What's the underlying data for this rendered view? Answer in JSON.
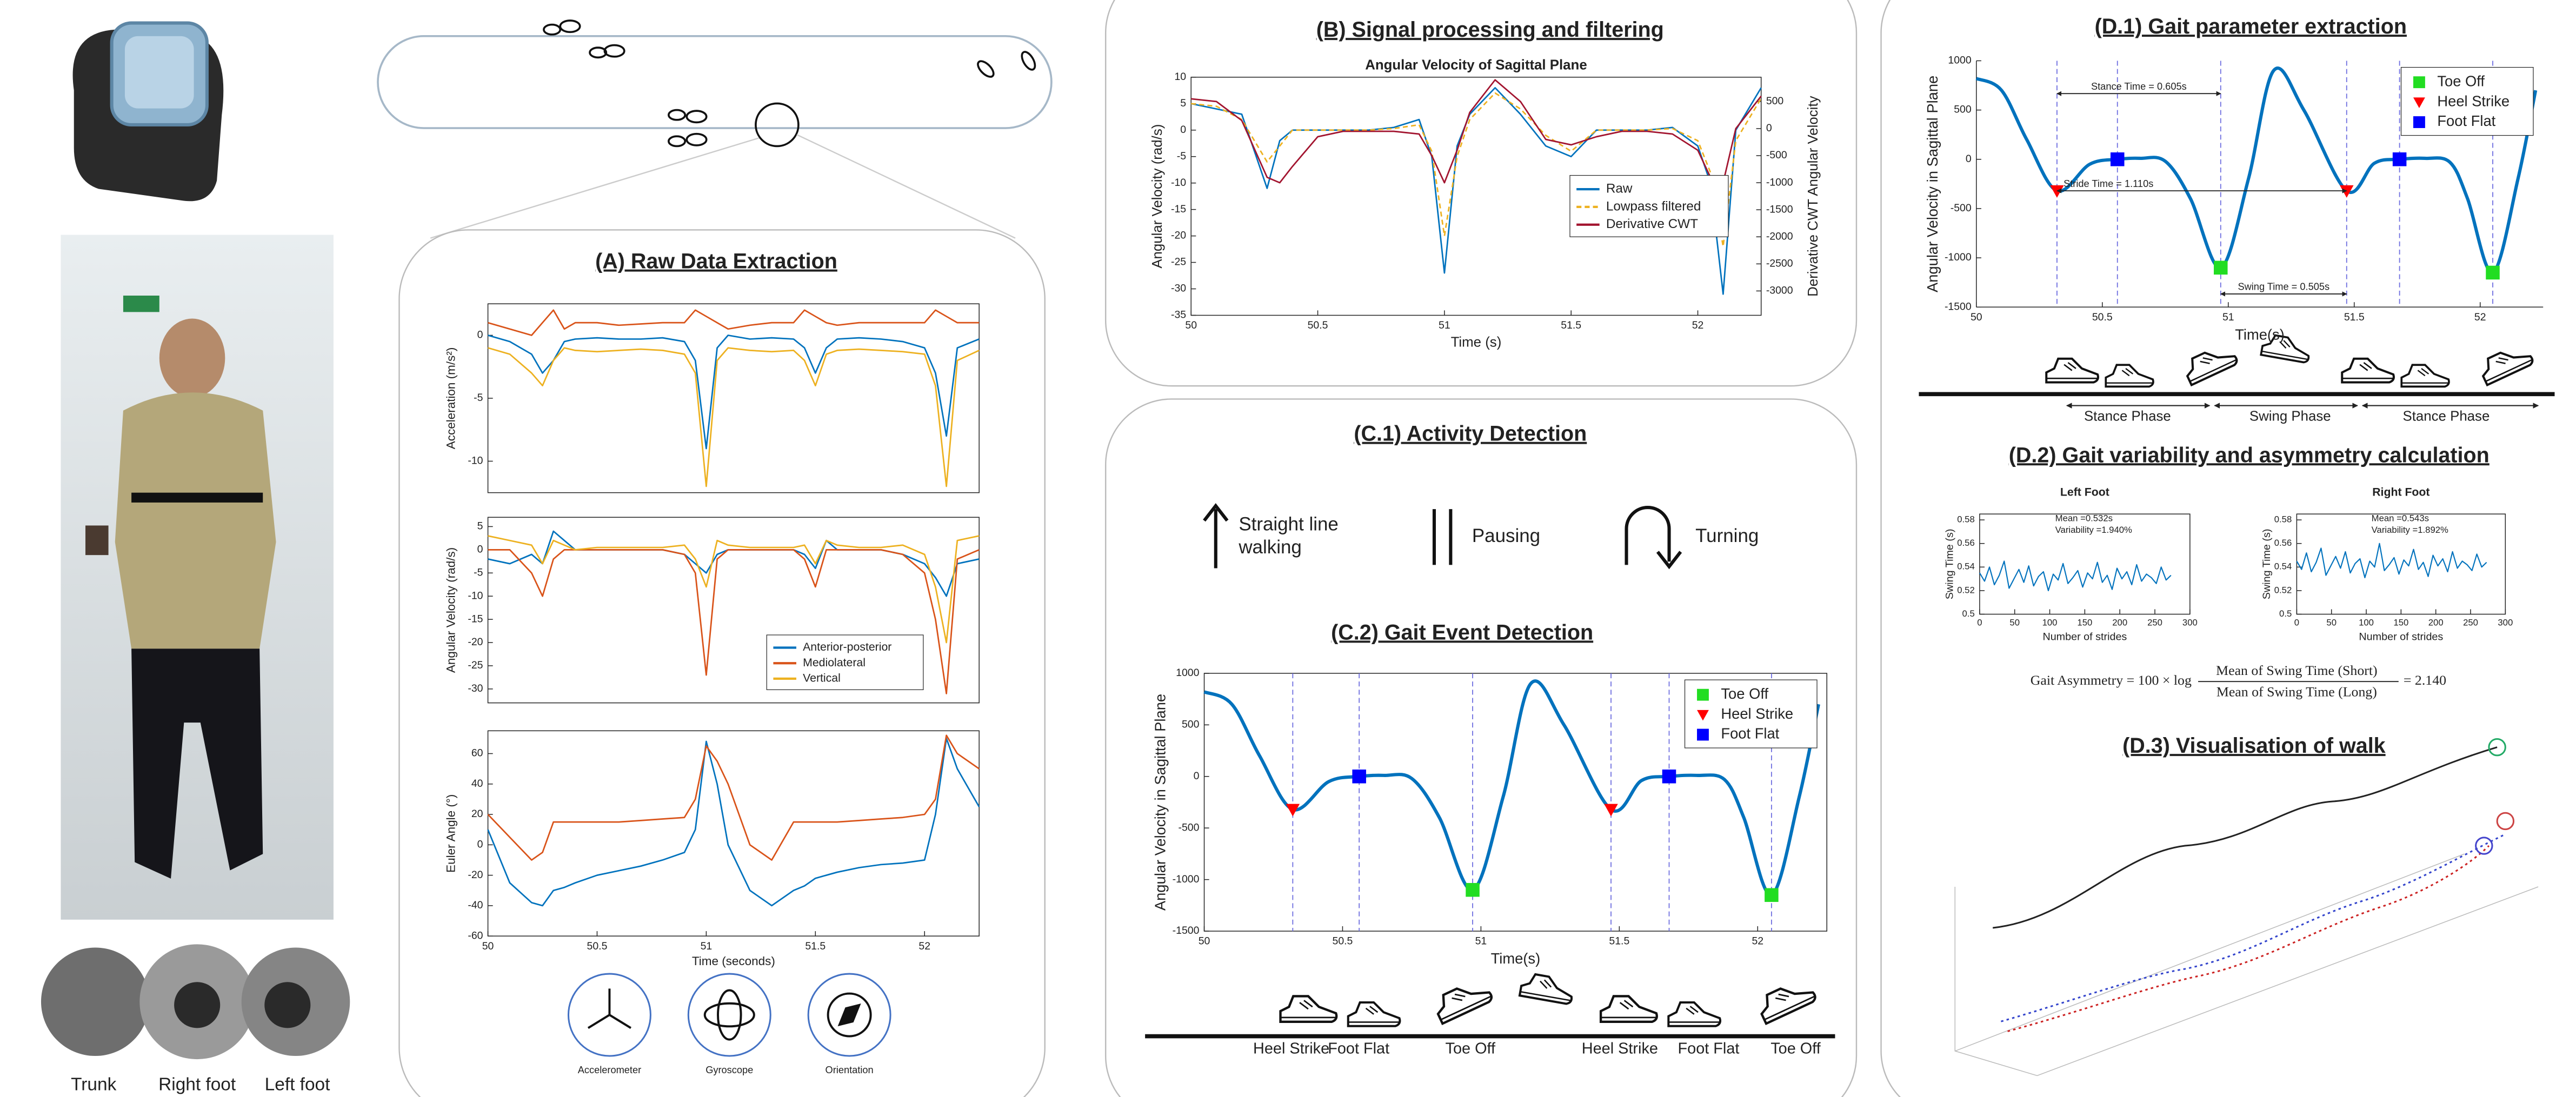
{
  "panels": {
    "A": "(A) Raw Data Extraction",
    "B": "(B) Signal processing and filtering",
    "C1": "(C.1) Activity Detection",
    "C2": "(C.2) Gait Event Detection",
    "D1": "(D.1) Gait parameter extraction",
    "D2": "(D.2) Gait variability and asymmetry calculation",
    "D3": "(D.3) Visualisation of walk"
  },
  "sensor_locations": [
    "Trunk",
    "Right foot",
    "Left foot"
  ],
  "sensor_types": [
    "Accelerometer",
    "Gyroscope",
    "Orientation"
  ],
  "activities": [
    [
      "Straight line",
      "walking"
    ],
    [
      "Pausing"
    ],
    [
      "Turning"
    ]
  ],
  "asymmetry": {
    "lhs": "Gait Asymmetry = 100 × log",
    "numerator": "Mean of Swing Time (Short)",
    "denominator": "Mean of Swing Time (Long)",
    "result": "= 2.140"
  },
  "chart_data": [
    {
      "type": "line",
      "ylabel": "Acceleration (m/s²)",
      "x": [
        50,
        50.1,
        50.2,
        50.25,
        50.3,
        50.35,
        50.4,
        50.5,
        50.6,
        50.7,
        50.8,
        50.9,
        50.95,
        51,
        51.05,
        51.1,
        51.2,
        51.3,
        51.4,
        51.45,
        51.5,
        51.55,
        51.6,
        51.7,
        51.8,
        51.9,
        52,
        52.05,
        52.1,
        52.15,
        52.25
      ],
      "xlim": [
        50,
        52.25
      ],
      "ylim": [
        -12.5,
        2.5
      ],
      "yticks": [
        0,
        -5,
        -10
      ],
      "series": [
        {
          "color": "#0072BD",
          "values": [
            0,
            -0.5,
            -1.5,
            -3,
            -2,
            -0.5,
            -0.3,
            -0.2,
            -0.3,
            -0.3,
            -0.2,
            -0.5,
            -2,
            -9,
            -1,
            0,
            -0.3,
            -0.2,
            -0.3,
            -1,
            -3,
            -1,
            -0.3,
            -0.2,
            -0.3,
            -0.5,
            -1,
            -3,
            -8,
            -1,
            -0.3
          ]
        },
        {
          "color": "#D95319",
          "values": [
            1,
            0.5,
            0,
            1,
            2,
            0.5,
            1,
            1,
            0.8,
            0.9,
            1,
            1,
            2,
            1.5,
            1,
            0.5,
            0.8,
            1,
            1,
            2,
            1.5,
            1,
            0.8,
            1,
            1,
            1,
            1,
            2,
            1.5,
            1,
            1
          ]
        },
        {
          "color": "#EDB120",
          "values": [
            -1,
            -1.5,
            -3,
            -4,
            -2,
            -1,
            -1.2,
            -1.3,
            -1.2,
            -1.1,
            -1.2,
            -1.5,
            -3,
            -12,
            -2,
            -1,
            -1.2,
            -1.3,
            -1.2,
            -2,
            -4,
            -1.5,
            -1.2,
            -1.1,
            -1.2,
            -1.3,
            -1.5,
            -4,
            -12,
            -2,
            -1.2
          ]
        }
      ]
    },
    {
      "type": "line",
      "ylabel": "Angular Velocity (rad/s)",
      "legend": "lower right",
      "x": [
        50,
        50.1,
        50.2,
        50.25,
        50.3,
        50.35,
        50.4,
        50.5,
        50.6,
        50.7,
        50.8,
        50.9,
        50.95,
        51,
        51.05,
        51.1,
        51.2,
        51.3,
        51.4,
        51.45,
        51.5,
        51.55,
        51.6,
        51.7,
        51.8,
        51.9,
        52,
        52.05,
        52.1,
        52.15,
        52.25
      ],
      "xlim": [
        50,
        52.25
      ],
      "ylim": [
        -33,
        7
      ],
      "yticks": [
        5,
        0,
        -5,
        -10,
        -15,
        -20,
        -25,
        -30
      ],
      "series": [
        {
          "name": "Anterior-posterior",
          "color": "#0072BD",
          "values": [
            -2,
            -3,
            -1,
            -3,
            4,
            2,
            0,
            0,
            0,
            0,
            0,
            -1,
            -3,
            -5,
            -1,
            0,
            0,
            0,
            0,
            -1,
            -4,
            2,
            0,
            0,
            0,
            -1,
            -3,
            -6,
            -10,
            -3,
            -2
          ]
        },
        {
          "name": "Mediolateral",
          "color": "#D95319",
          "values": [
            0,
            0,
            -5,
            -10,
            -2,
            0,
            0,
            0,
            0,
            0,
            0,
            -1,
            -5,
            -27,
            -2,
            0,
            0,
            0,
            0,
            -2,
            -8,
            0,
            0,
            0,
            0,
            -1,
            -5,
            -15,
            -31,
            -2,
            0
          ]
        },
        {
          "name": "Vertical",
          "color": "#EDB120",
          "values": [
            3,
            2,
            1,
            -3,
            2,
            1,
            0,
            0.5,
            0.5,
            0.5,
            0.5,
            1,
            -2,
            -8,
            2,
            1,
            0.5,
            0.5,
            0.5,
            1,
            -3,
            2,
            1,
            0.5,
            0.5,
            1,
            -1,
            -8,
            -20,
            2,
            3
          ]
        }
      ]
    },
    {
      "type": "line",
      "ylabel": "Euler Angle (°)",
      "xlabel": "Time (seconds)",
      "x": [
        50,
        50.1,
        50.2,
        50.25,
        50.3,
        50.35,
        50.4,
        50.5,
        50.6,
        50.7,
        50.8,
        50.9,
        50.95,
        51,
        51.05,
        51.1,
        51.2,
        51.3,
        51.4,
        51.45,
        51.5,
        51.55,
        51.6,
        51.7,
        51.8,
        51.9,
        52,
        52.05,
        52.1,
        52.15,
        52.25
      ],
      "xlim": [
        50,
        52.25
      ],
      "xticks": [
        50,
        50.5,
        51,
        51.5,
        52
      ],
      "ylim": [
        -60,
        75
      ],
      "yticks": [
        60,
        40,
        20,
        0,
        -20,
        -40,
        -60
      ],
      "series": [
        {
          "color": "#0072BD",
          "values": [
            10,
            -25,
            -38,
            -40,
            -30,
            -28,
            -25,
            -20,
            -17,
            -14,
            -10,
            -5,
            10,
            68,
            40,
            0,
            -30,
            -40,
            -30,
            -27,
            -22,
            -20,
            -18,
            -15,
            -13,
            -12,
            -10,
            20,
            70,
            50,
            25
          ]
        },
        {
          "color": "#D95319",
          "values": [
            20,
            5,
            -10,
            -5,
            15,
            15,
            15,
            15,
            15,
            16,
            17,
            18,
            30,
            65,
            55,
            40,
            0,
            -10,
            15,
            15,
            15,
            15,
            15,
            16,
            17,
            18,
            20,
            30,
            72,
            60,
            50
          ]
        }
      ]
    },
    {
      "type": "line",
      "title": "Angular Velocity of Sagittal Plane",
      "xlabel": "Time (s)",
      "ylabel": "Angular Velocity (rad/s)",
      "y2label": "Derivative CWT Angular Velocity",
      "y_color": "#0072BD",
      "y2_color": "#D95319",
      "legend": "center right",
      "x": [
        50,
        50.1,
        50.2,
        50.3,
        50.35,
        50.4,
        50.5,
        50.6,
        50.7,
        50.8,
        50.9,
        50.95,
        51,
        51.05,
        51.1,
        51.2,
        51.3,
        51.4,
        51.5,
        51.6,
        51.7,
        51.8,
        51.9,
        52,
        52.05,
        52.1,
        52.15,
        52.25
      ],
      "xlim": [
        50,
        52.25
      ],
      "xticks": [
        50,
        50.5,
        51,
        51.5,
        52
      ],
      "ylim": [
        -35,
        10
      ],
      "yticks": [
        10,
        5,
        0,
        -5,
        -10,
        -15,
        -20,
        -25,
        -30,
        -35
      ],
      "y2lim": [
        -3450,
        950
      ],
      "y2ticks": [
        500,
        0,
        -500,
        -1000,
        -1500,
        -2000,
        -2500,
        -3000
      ],
      "series": [
        {
          "name": "Raw",
          "color": "#0072BD",
          "values": [
            5,
            4,
            3,
            -11,
            -2,
            0,
            0,
            0,
            0,
            0.5,
            2,
            -5,
            -27,
            -3,
            3,
            8,
            3,
            -3,
            -5,
            0,
            0,
            0,
            0.5,
            -3,
            -10,
            -31,
            0,
            8
          ]
        },
        {
          "name": "Lowpass filtered",
          "color": "#EDB120",
          "dash": true,
          "values": [
            5,
            4.5,
            2,
            -6,
            -3,
            0,
            0,
            0,
            0,
            0.3,
            1,
            -4,
            -20,
            -5,
            2,
            7,
            4,
            -1,
            -4,
            0,
            0,
            0,
            0.3,
            -2,
            -8,
            -22,
            -2,
            6
          ]
        },
        {
          "name": "Derivative CWT",
          "color": "#A2142F",
          "axis": "y2",
          "values": [
            550,
            500,
            150,
            -900,
            -1000,
            -700,
            -150,
            -50,
            -50,
            -50,
            -100,
            -500,
            -1000,
            -400,
            300,
            900,
            500,
            -200,
            -300,
            -150,
            -50,
            -50,
            -100,
            -400,
            -900,
            -1000,
            0,
            600
          ]
        }
      ]
    },
    {
      "type": "gait",
      "xlabel": "Time(s)",
      "ylabel": "Angular Velocity in Sagittal Plane",
      "legend": "upper right",
      "x": [
        50,
        50.1,
        50.2,
        50.32,
        50.45,
        50.56,
        50.65,
        50.75,
        50.85,
        50.97,
        51.08,
        51.18,
        51.3,
        51.47,
        51.58,
        51.68,
        51.78,
        51.88,
        51.95,
        52.05,
        52.15,
        52.22
      ],
      "values": [
        820,
        700,
        200,
        -320,
        -50,
        0,
        10,
        -20,
        -400,
        -1100,
        -200,
        900,
        500,
        -320,
        -40,
        0,
        10,
        -30,
        -400,
        -1150,
        -200,
        700
      ],
      "color": "#0072BD",
      "xlim": [
        50,
        52.25
      ],
      "xticks": [
        50,
        50.5,
        51,
        51.5,
        52
      ],
      "ylim": [
        -1500,
        1000
      ],
      "yticks": [
        1000,
        500,
        0,
        -500,
        -1000,
        -1500
      ],
      "events": [
        {
          "name": "Toe Off",
          "color": "#22DD22",
          "shape": "square",
          "x": [
            50.97,
            52.05
          ],
          "values": [
            -1100,
            -1150
          ]
        },
        {
          "name": "Heel Strike",
          "color": "#FF0000",
          "shape": "triangle",
          "x": [
            50.32,
            51.47
          ],
          "values": [
            -320,
            -320
          ]
        },
        {
          "name": "Foot Flat",
          "color": "#0000FF",
          "shape": "square",
          "x": [
            50.56,
            51.68
          ],
          "values": [
            0,
            0
          ]
        }
      ],
      "phase_labels": [
        "Heel Strike",
        "Foot Flat",
        "Toe Off",
        "Heel Strike",
        "Foot Flat",
        "Toe Off"
      ]
    },
    {
      "type": "gait",
      "xlabel": "Time(s)",
      "ylabel": "Angular Velocity in Sagittal Plane",
      "legend": "upper right",
      "x": [
        50,
        50.1,
        50.2,
        50.32,
        50.45,
        50.56,
        50.65,
        50.75,
        50.85,
        50.97,
        51.08,
        51.18,
        51.3,
        51.47,
        51.58,
        51.68,
        51.78,
        51.88,
        51.95,
        52.05,
        52.15,
        52.22
      ],
      "values": [
        820,
        700,
        200,
        -320,
        -50,
        0,
        10,
        -20,
        -400,
        -1100,
        -200,
        900,
        500,
        -320,
        -40,
        0,
        10,
        -30,
        -400,
        -1150,
        -200,
        700
      ],
      "color": "#0072BD",
      "xlim": [
        50,
        52.25
      ],
      "xticks": [
        50,
        50.5,
        51,
        51.5,
        52
      ],
      "ylim": [
        -1500,
        1000
      ],
      "yticks": [
        1000,
        500,
        0,
        -500,
        -1000,
        -1500
      ],
      "events": [
        {
          "name": "Toe Off",
          "color": "#22DD22",
          "shape": "square",
          "x": [
            50.97,
            52.05
          ],
          "values": [
            -1100,
            -1150
          ]
        },
        {
          "name": "Heel Strike",
          "color": "#FF0000",
          "shape": "triangle",
          "x": [
            50.32,
            51.47
          ],
          "values": [
            -320,
            -320
          ]
        },
        {
          "name": "Foot Flat",
          "color": "#0000FF",
          "shape": "square",
          "x": [
            50.56,
            51.68
          ],
          "values": [
            0,
            0
          ]
        }
      ],
      "annotations": [
        "Stance Time = 0.605s",
        "Stride Time = 1.110s",
        "Swing Time = 0.505s"
      ],
      "phase_labels": [
        "Stance Phase",
        "Swing Phase",
        "Stance Phase"
      ]
    },
    {
      "type": "line",
      "title": "Left Foot",
      "xlabel": "Number of strides",
      "ylabel": "Swing Time (s)",
      "annotations": [
        "Mean =0.532s",
        "Variability =1.940%"
      ],
      "x": [
        0,
        7,
        14,
        21,
        28,
        35,
        42,
        49,
        56,
        63,
        70,
        77,
        84,
        91,
        98,
        105,
        112,
        119,
        126,
        133,
        140,
        147,
        154,
        161,
        168,
        175,
        182,
        189,
        196,
        203,
        210,
        217,
        224,
        231,
        238,
        245,
        252,
        259,
        266,
        273
      ],
      "xlim": [
        0,
        300
      ],
      "xticks": [
        0,
        50,
        100,
        150,
        200,
        250,
        300
      ],
      "ylim": [
        0.5,
        0.585
      ],
      "yticks": [
        0.5,
        0.52,
        0.54,
        0.56,
        0.58
      ],
      "series": [
        {
          "color": "#0072BD",
          "values": [
            0.535,
            0.528,
            0.54,
            0.525,
            0.533,
            0.545,
            0.522,
            0.53,
            0.538,
            0.527,
            0.541,
            0.524,
            0.532,
            0.536,
            0.52,
            0.534,
            0.529,
            0.543,
            0.526,
            0.531,
            0.537,
            0.523,
            0.535,
            0.53,
            0.544,
            0.527,
            0.533,
            0.521,
            0.539,
            0.53,
            0.536,
            0.525,
            0.542,
            0.528,
            0.534,
            0.531,
            0.526,
            0.54,
            0.529,
            0.533
          ]
        }
      ]
    },
    {
      "type": "line",
      "title": "Right Foot",
      "xlabel": "Number of strides",
      "ylabel": "Swing Time (s)",
      "annotations": [
        "Mean =0.543s",
        "Variability =1.892%"
      ],
      "x": [
        0,
        7,
        14,
        21,
        28,
        35,
        42,
        49,
        56,
        63,
        70,
        77,
        84,
        91,
        98,
        105,
        112,
        119,
        126,
        133,
        140,
        147,
        154,
        161,
        168,
        175,
        182,
        189,
        196,
        203,
        210,
        217,
        224,
        231,
        238,
        245,
        252,
        259,
        266,
        273
      ],
      "xlim": [
        0,
        300
      ],
      "xticks": [
        0,
        50,
        100,
        150,
        200,
        250,
        300
      ],
      "ylim": [
        0.5,
        0.585
      ],
      "yticks": [
        0.5,
        0.52,
        0.54,
        0.56,
        0.58
      ],
      "series": [
        {
          "color": "#0072BD",
          "values": [
            0.545,
            0.538,
            0.552,
            0.536,
            0.544,
            0.556,
            0.533,
            0.541,
            0.549,
            0.539,
            0.553,
            0.535,
            0.543,
            0.547,
            0.531,
            0.545,
            0.54,
            0.56,
            0.537,
            0.542,
            0.548,
            0.534,
            0.546,
            0.541,
            0.555,
            0.538,
            0.544,
            0.532,
            0.55,
            0.541,
            0.547,
            0.536,
            0.553,
            0.539,
            0.545,
            0.542,
            0.537,
            0.551,
            0.54,
            0.544
          ]
        }
      ]
    }
  ]
}
